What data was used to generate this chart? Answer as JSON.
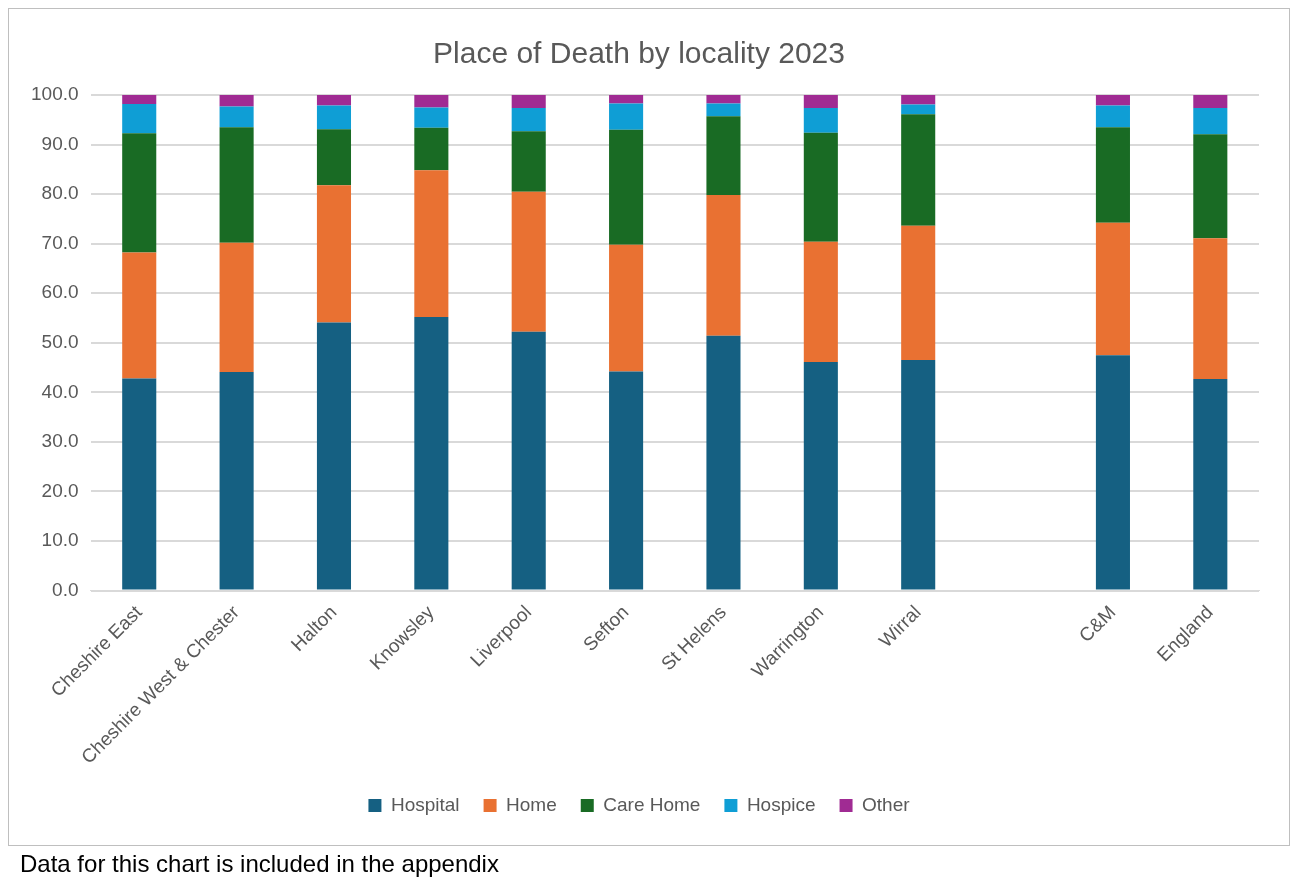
{
  "chart_data": {
    "type": "bar",
    "title": "Place of Death by locality 2023",
    "stacked": true,
    "categories": [
      "Cheshire East",
      "Cheshire West & Chester",
      "Halton",
      "Knowsley",
      "Liverpool",
      "Sefton",
      "St Helens",
      "Warrington",
      "Wirral",
      null,
      "C&M",
      "England"
    ],
    "series": [
      {
        "name": "Hospital",
        "color": "#156082",
        "values": [
          42.8,
          44.1,
          54.1,
          55.2,
          52.2,
          44.2,
          51.4,
          46.1,
          46.5,
          null,
          47.5,
          42.7
        ]
      },
      {
        "name": "Home",
        "color": "#e97132",
        "values": [
          25.4,
          26.1,
          27.7,
          29.6,
          28.3,
          25.6,
          28.4,
          24.3,
          27.1,
          null,
          26.7,
          28.4
        ]
      },
      {
        "name": "Care Home",
        "color": "#196b24",
        "values": [
          24.1,
          23.3,
          11.3,
          8.6,
          12.2,
          23.2,
          15.9,
          22.0,
          22.5,
          null,
          19.3,
          21.0
        ]
      },
      {
        "name": "Hospice",
        "color": "#0f9ed5",
        "values": [
          5.9,
          4.2,
          4.8,
          4.1,
          4.7,
          5.3,
          2.6,
          5.0,
          2.0,
          null,
          4.4,
          5.3
        ]
      },
      {
        "name": "Other",
        "color": "#a02b93",
        "values": [
          1.8,
          2.3,
          2.1,
          2.5,
          2.6,
          1.7,
          1.7,
          2.6,
          1.9,
          null,
          2.1,
          2.6
        ]
      }
    ],
    "ylim": [
      0,
      100
    ],
    "yticks": [
      {
        "value": 0,
        "label": "0.0"
      },
      {
        "value": 10,
        "label": "10.0"
      },
      {
        "value": 20,
        "label": "20.0"
      },
      {
        "value": 30,
        "label": "30.0"
      },
      {
        "value": 40,
        "label": "40.0"
      },
      {
        "value": 50,
        "label": "50.0"
      },
      {
        "value": 60,
        "label": "60.0"
      },
      {
        "value": 70,
        "label": "70.0"
      },
      {
        "value": 80,
        "label": "80.0"
      },
      {
        "value": 90,
        "label": "90.0"
      },
      {
        "value": 100,
        "label": "100.0"
      }
    ],
    "grid": "y",
    "legend": "bottom",
    "annotations": [
      "Data for this chart is included in the appendix"
    ]
  }
}
